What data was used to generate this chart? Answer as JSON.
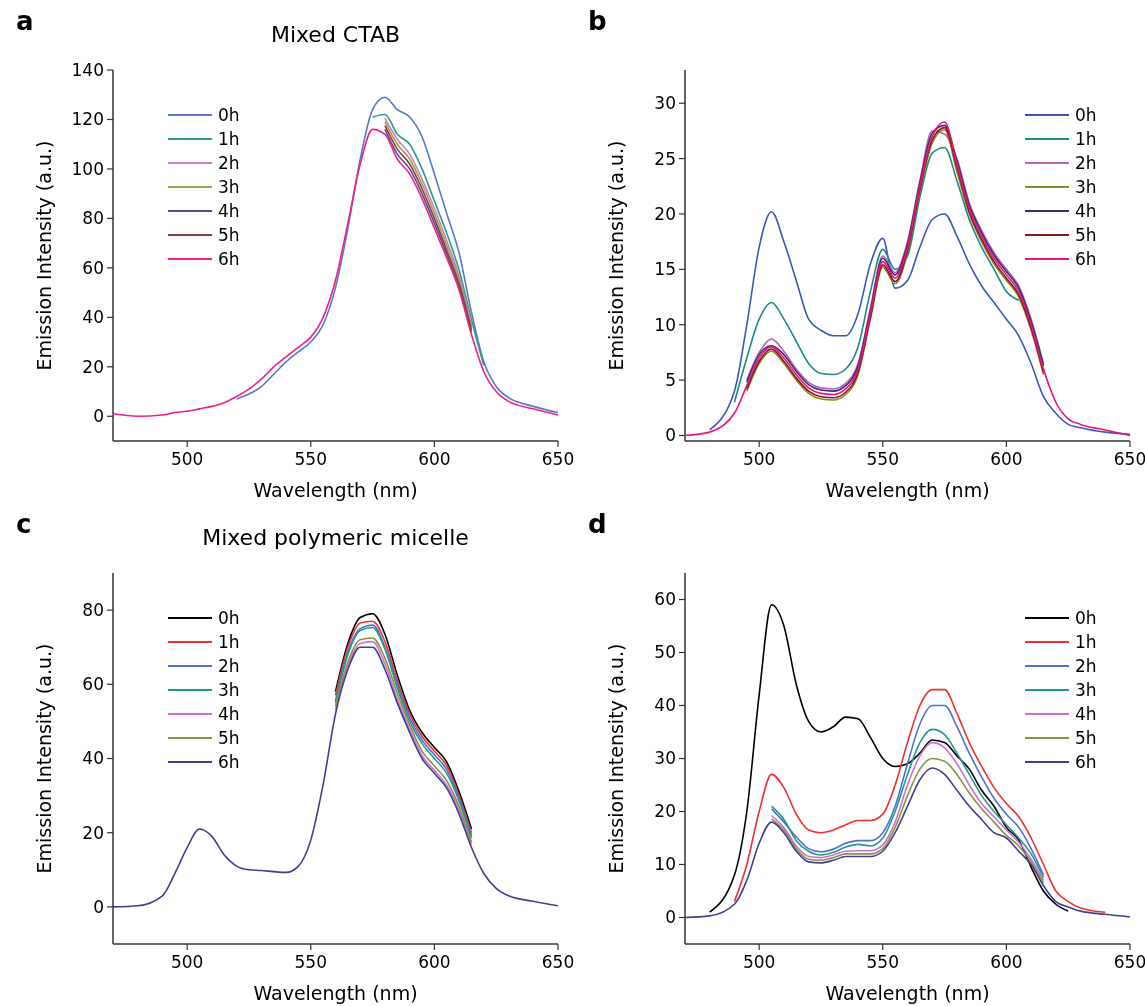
{
  "chart_data": [
    {
      "type": "line",
      "title": "Mixed CTAB",
      "annotations": [
        "a"
      ],
      "xlabel": "Wavelength (nm)",
      "ylabel": "Emission Intensity (a.u.)",
      "legend": "top left",
      "xlim": [
        470,
        650
      ],
      "xticks": [
        500,
        550,
        600,
        650
      ],
      "ylim": [
        -10,
        140
      ],
      "yticks": [
        0,
        20,
        40,
        60,
        80,
        100,
        120,
        140
      ],
      "x": [
        470,
        480,
        490,
        495,
        500,
        505,
        510,
        515,
        520,
        525,
        530,
        535,
        540,
        545,
        550,
        555,
        560,
        565,
        570,
        575,
        580,
        585,
        590,
        595,
        600,
        605,
        610,
        615,
        620,
        625,
        630,
        640,
        650
      ],
      "series": [
        {
          "name": "0h",
          "color": "#5a78c8",
          "values": [
            null,
            null,
            null,
            null,
            null,
            null,
            null,
            null,
            7,
            9,
            12,
            17,
            22,
            26,
            30,
            37,
            52,
            76,
            104,
            124,
            129,
            124,
            121,
            113,
            98,
            82,
            66,
            42,
            22,
            12,
            7.5,
            4,
            1.5
          ]
        },
        {
          "name": "1h",
          "color": "#2a9a8a",
          "values": [
            null,
            null,
            null,
            null,
            null,
            null,
            null,
            null,
            null,
            null,
            null,
            null,
            null,
            null,
            null,
            null,
            null,
            null,
            null,
            121,
            122,
            114,
            110,
            100,
            87,
            74,
            59,
            39,
            20.5,
            null,
            null,
            null,
            null
          ]
        },
        {
          "name": "2h",
          "color": "#d080c0",
          "values": [
            null,
            null,
            null,
            null,
            null,
            null,
            null,
            null,
            null,
            null,
            null,
            null,
            null,
            null,
            null,
            null,
            null,
            null,
            null,
            null,
            120.5,
            112,
            106,
            96,
            84,
            71,
            56.5,
            37,
            null,
            null,
            null,
            null,
            null
          ]
        },
        {
          "name": "3h",
          "color": "#a0a050",
          "values": [
            null,
            null,
            null,
            null,
            null,
            null,
            null,
            null,
            null,
            null,
            null,
            null,
            null,
            null,
            null,
            null,
            null,
            null,
            null,
            null,
            119,
            110,
            104,
            94,
            82,
            69,
            55,
            36,
            null,
            null,
            null,
            null,
            null
          ]
        },
        {
          "name": "4h",
          "color": "#505090",
          "values": [
            null,
            null,
            null,
            null,
            null,
            null,
            null,
            null,
            null,
            null,
            null,
            null,
            null,
            null,
            null,
            null,
            null,
            null,
            null,
            null,
            116,
            106,
            100,
            90,
            78,
            65.5,
            52,
            34,
            null,
            null,
            null,
            null,
            null
          ]
        },
        {
          "name": "5h",
          "color": "#8a4040",
          "values": [
            null,
            null,
            null,
            null,
            null,
            null,
            null,
            null,
            null,
            null,
            null,
            null,
            null,
            null,
            null,
            null,
            null,
            null,
            null,
            null,
            117.5,
            108,
            102,
            92,
            80,
            67,
            53.5,
            35,
            null,
            null,
            null,
            null,
            null
          ]
        },
        {
          "name": "6h",
          "color": "#f0208a",
          "values": [
            1,
            0,
            0.5,
            1.5,
            2,
            3,
            4,
            5.5,
            8,
            11,
            15,
            20,
            24,
            28,
            32,
            40,
            55,
            78,
            102,
            116,
            114,
            104,
            98,
            88,
            76,
            64,
            51,
            33,
            18,
            10,
            6,
            3,
            0.5
          ]
        }
      ]
    },
    {
      "type": "line",
      "annotations": [
        "b"
      ],
      "xlabel": "Wavelength (nm)",
      "ylabel": "Emission Intensity (a.u.)",
      "legend": "top right",
      "xlim": [
        470,
        650
      ],
      "xticks": [
        500,
        550,
        600,
        650
      ],
      "ylim": [
        -0.5,
        33
      ],
      "yticks": [
        0,
        5,
        10,
        15,
        20,
        25,
        30
      ],
      "x": [
        470,
        480,
        490,
        495,
        500,
        505,
        510,
        515,
        520,
        525,
        530,
        535,
        540,
        545,
        550,
        555,
        560,
        565,
        570,
        575,
        580,
        585,
        590,
        595,
        600,
        605,
        610,
        615,
        620,
        625,
        630,
        640,
        650
      ],
      "series": [
        {
          "name": "0h",
          "color": "#3a58b8",
          "values": [
            null,
            0.5,
            4,
            10,
            17,
            20.2,
            17.5,
            14,
            10.5,
            9.5,
            9,
            9,
            11,
            15.5,
            17.8,
            13.3,
            14,
            17,
            19.5,
            20,
            18,
            15.5,
            13.5,
            12,
            10.5,
            9,
            6.5,
            3.5,
            2,
            1,
            0.7,
            0.3,
            0.1
          ]
        },
        {
          "name": "1h",
          "color": "#1a8a88",
          "values": [
            null,
            null,
            3,
            7,
            10.5,
            12,
            10.5,
            8.5,
            6.5,
            5.6,
            5.5,
            6,
            8,
            13,
            16.8,
            15,
            16.2,
            21.5,
            25.5,
            26,
            23,
            19.5,
            17,
            15,
            13,
            12.2,
            null,
            null,
            null,
            null,
            null,
            null,
            null
          ]
        },
        {
          "name": "2h",
          "color": "#c060b0",
          "values": [
            null,
            null,
            null,
            5,
            7.5,
            8.7,
            7.6,
            6,
            4.8,
            4.3,
            4.2,
            4.7,
            6.5,
            11.5,
            16.2,
            14.7,
            17.5,
            23,
            27.5,
            27.2,
            25,
            21,
            18.5,
            16.5,
            15,
            13.5,
            10.5,
            6.5,
            null,
            null,
            null,
            null,
            null
          ]
        },
        {
          "name": "3h",
          "color": "#8a8a20",
          "values": [
            null,
            null,
            null,
            4,
            6.5,
            7.6,
            6.5,
            5,
            3.8,
            3.3,
            3.2,
            3.7,
            5.5,
            10.5,
            15.2,
            13.7,
            16.5,
            22,
            26.4,
            27.6,
            23.8,
            20,
            17.5,
            15.5,
            14,
            12.5,
            9.5,
            5.5,
            null,
            null,
            null,
            null,
            null
          ]
        },
        {
          "name": "4h",
          "color": "#303080",
          "values": [
            null,
            null,
            null,
            4.8,
            7.3,
            8.1,
            7.3,
            5.8,
            4.6,
            4.1,
            4,
            4.5,
            6.3,
            11.3,
            16,
            14.5,
            17.3,
            22.8,
            27.3,
            28,
            24.8,
            20.8,
            18.3,
            16.3,
            14.8,
            13.3,
            10.3,
            6.3,
            null,
            null,
            null,
            null,
            null
          ]
        },
        {
          "name": "5h",
          "color": "#8a1a1a",
          "values": [
            null,
            null,
            null,
            4.2,
            6.7,
            7.8,
            6.7,
            5.2,
            4,
            3.5,
            3.4,
            3.9,
            5.7,
            10.7,
            15.4,
            13.9,
            16.7,
            22.2,
            26.7,
            27.8,
            24.2,
            20.2,
            17.7,
            15.7,
            14.2,
            12.7,
            9.7,
            5.7,
            null,
            null,
            null,
            null,
            null
          ]
        },
        {
          "name": "6h",
          "color": "#f0107a",
          "values": [
            0,
            0.3,
            2,
            4.5,
            7,
            8,
            7,
            5.5,
            4.3,
            3.8,
            3.7,
            4.2,
            6,
            11,
            15.7,
            14.2,
            17,
            22.5,
            27,
            28.3,
            24.5,
            20.5,
            18,
            16,
            14.5,
            13,
            10,
            6,
            3,
            1.5,
            1,
            0.5,
            0
          ]
        }
      ]
    },
    {
      "type": "line",
      "title": "Mixed polymeric micelle",
      "annotations": [
        "c"
      ],
      "xlabel": "Wavelength (nm)",
      "ylabel": "Emission Intensity (a.u.)",
      "legend": "top left",
      "xlim": [
        470,
        650
      ],
      "xticks": [
        500,
        550,
        600,
        650
      ],
      "ylim": [
        -10,
        90
      ],
      "yticks": [
        0,
        20,
        40,
        60,
        80
      ],
      "x": [
        470,
        480,
        490,
        495,
        500,
        505,
        510,
        515,
        520,
        525,
        530,
        535,
        540,
        545,
        550,
        555,
        560,
        565,
        570,
        575,
        580,
        585,
        590,
        595,
        600,
        605,
        610,
        615,
        620,
        625,
        630,
        640,
        650
      ],
      "series": [
        {
          "name": "0h",
          "color": "#000000",
          "values": [
            null,
            null,
            null,
            null,
            null,
            null,
            null,
            null,
            null,
            null,
            null,
            null,
            null,
            null,
            null,
            null,
            58,
            71,
            78,
            79,
            73.5,
            62.5,
            53,
            47,
            43,
            39,
            31,
            21,
            null,
            null,
            null,
            null,
            null
          ]
        },
        {
          "name": "1h",
          "color": "#f03030",
          "values": [
            null,
            null,
            null,
            null,
            null,
            null,
            null,
            null,
            null,
            null,
            null,
            null,
            null,
            null,
            null,
            null,
            57,
            70,
            76.5,
            77,
            71.5,
            61,
            52,
            46,
            42,
            38,
            30,
            20,
            null,
            null,
            null,
            null,
            null
          ]
        },
        {
          "name": "2h",
          "color": "#5070d0",
          "values": [
            null,
            null,
            null,
            null,
            null,
            null,
            null,
            null,
            null,
            null,
            null,
            null,
            null,
            null,
            null,
            null,
            55.5,
            68.7,
            75,
            76,
            70,
            60,
            51,
            45,
            41,
            37,
            29.3,
            19.2,
            null,
            null,
            null,
            null,
            null
          ]
        },
        {
          "name": "3h",
          "color": "#209a90",
          "values": [
            null,
            null,
            null,
            null,
            null,
            null,
            null,
            null,
            null,
            null,
            null,
            null,
            null,
            null,
            null,
            null,
            55,
            68,
            74.5,
            75.3,
            69.5,
            59,
            50,
            44,
            40,
            36,
            28.5,
            18.5,
            null,
            null,
            null,
            null,
            null
          ]
        },
        {
          "name": "4h",
          "color": "#d070d0",
          "values": [
            null,
            null,
            null,
            null,
            null,
            null,
            null,
            null,
            null,
            null,
            null,
            null,
            null,
            null,
            null,
            null,
            53,
            65,
            71,
            71.5,
            65.5,
            56,
            47.8,
            40.8,
            36.8,
            32.8,
            26,
            16.8,
            null,
            null,
            null,
            null,
            null
          ]
        },
        {
          "name": "5h",
          "color": "#909040",
          "values": [
            null,
            null,
            null,
            null,
            null,
            null,
            null,
            null,
            null,
            null,
            null,
            null,
            null,
            null,
            null,
            null,
            54,
            66,
            72,
            72.5,
            67,
            57.5,
            49,
            42,
            38,
            34,
            27,
            17.5,
            null,
            null,
            null,
            null,
            null
          ]
        },
        {
          "name": "6h",
          "color": "#404090",
          "values": [
            0,
            0.3,
            3,
            9,
            16,
            21,
            19,
            14,
            11,
            10,
            9.8,
            9.5,
            9.3,
            11,
            18,
            33,
            52,
            64,
            70,
            70,
            64,
            55,
            47,
            40,
            36,
            32,
            25,
            16,
            9,
            5,
            3,
            1.5,
            0.3
          ]
        }
      ]
    },
    {
      "type": "line",
      "annotations": [
        "d"
      ],
      "xlabel": "Wavelength (nm)",
      "ylabel": "Emission Intensity (a.u.)",
      "legend": "top right",
      "xlim": [
        470,
        650
      ],
      "xticks": [
        500,
        550,
        600,
        650
      ],
      "ylim": [
        -5,
        65
      ],
      "yticks": [
        0,
        10,
        20,
        30,
        40,
        50,
        60
      ],
      "x": [
        470,
        480,
        490,
        495,
        500,
        505,
        510,
        515,
        520,
        525,
        530,
        535,
        540,
        545,
        550,
        555,
        560,
        565,
        570,
        575,
        580,
        585,
        590,
        595,
        600,
        605,
        610,
        615,
        620,
        625,
        630,
        640,
        650
      ],
      "series": [
        {
          "name": "0h",
          "color": "#000000",
          "values": [
            null,
            1,
            8,
            20,
            42,
            59,
            55,
            44,
            37,
            35,
            36,
            37.8,
            37.5,
            34,
            30,
            28.5,
            29,
            31,
            33.5,
            33,
            30.5,
            28,
            24,
            21,
            17,
            14.6,
            9.5,
            5,
            2.5,
            1.2,
            null,
            null,
            null
          ]
        },
        {
          "name": "1h",
          "color": "#f03030",
          "values": [
            null,
            null,
            3,
            10,
            20,
            27,
            24.5,
            19.5,
            16.5,
            16,
            16.5,
            17.5,
            18.3,
            18.3,
            19.5,
            25,
            33,
            40,
            43,
            43,
            38.5,
            33,
            28.5,
            24.5,
            21.5,
            19,
            15,
            10,
            5,
            3,
            1.8,
            1,
            null
          ]
        },
        {
          "name": "2h",
          "color": "#5070d0",
          "values": [
            null,
            null,
            null,
            null,
            null,
            20.5,
            18,
            15.2,
            13,
            12.4,
            12.9,
            14,
            14.5,
            14.5,
            16,
            21,
            29,
            36.5,
            40,
            40,
            36,
            31,
            26.5,
            22.5,
            19.5,
            17,
            13,
            8,
            null,
            null,
            null,
            null,
            null
          ]
        },
        {
          "name": "3h",
          "color": "#209a90",
          "values": [
            null,
            null,
            null,
            null,
            null,
            21,
            18.5,
            14.5,
            12.5,
            11.8,
            12.3,
            13.3,
            13.8,
            13.5,
            15,
            20,
            27,
            33,
            35.5,
            34.5,
            31,
            27,
            23,
            20,
            17.5,
            15,
            12,
            7.5,
            null,
            null,
            null,
            null,
            null
          ]
        },
        {
          "name": "4h",
          "color": "#d070d0",
          "values": [
            null,
            null,
            null,
            null,
            null,
            19.2,
            17,
            13.5,
            11.5,
            11.3,
            11.8,
            12.5,
            12.6,
            12.6,
            13.7,
            18,
            25,
            30.5,
            33,
            32,
            29,
            25,
            21.5,
            19,
            16.5,
            14.2,
            11,
            7,
            null,
            null,
            null,
            null,
            null
          ]
        },
        {
          "name": "5h",
          "color": "#909040",
          "values": [
            null,
            null,
            null,
            null,
            null,
            18.6,
            16.5,
            13,
            11,
            10.8,
            11.3,
            12,
            12,
            12,
            13,
            17,
            23,
            28,
            30,
            29.5,
            27,
            23.5,
            20.5,
            18,
            15.5,
            13.5,
            10.5,
            6.5,
            null,
            null,
            null,
            null,
            null
          ]
        },
        {
          "name": "6h",
          "color": "#404090",
          "values": [
            0,
            0.3,
            2.5,
            7,
            14,
            18,
            16,
            12.5,
            10.5,
            10.3,
            10.8,
            11.5,
            11.5,
            11.5,
            12.5,
            16,
            21,
            26,
            28.2,
            27,
            24,
            21,
            18.5,
            16,
            15,
            12.5,
            10,
            6,
            3,
            2,
            1.2,
            0.6,
            0.1
          ]
        }
      ]
    }
  ]
}
